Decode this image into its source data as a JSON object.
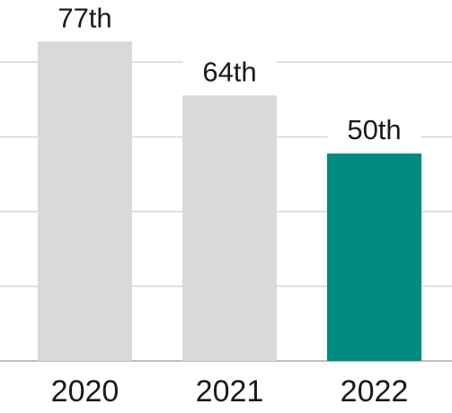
{
  "chart_data": {
    "type": "bar",
    "categories": [
      "2020",
      "2021",
      "2022"
    ],
    "values": [
      77,
      64,
      50
    ],
    "value_labels": [
      "77th",
      "64th",
      "50th"
    ],
    "colors": [
      "#d9d9d9",
      "#d9d9d9",
      "#008b80"
    ],
    "ylim": [
      0,
      87
    ],
    "yticks": [
      0,
      18,
      36,
      54,
      72
    ],
    "grid": true
  }
}
